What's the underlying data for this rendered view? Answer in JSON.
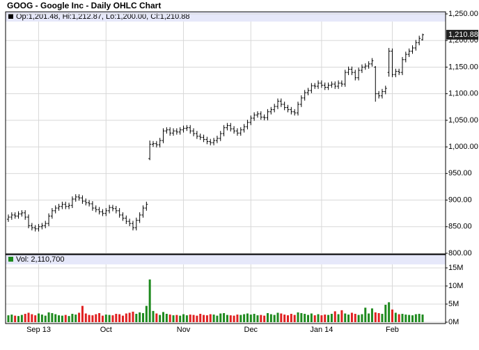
{
  "chart_data": {
    "type": "ohlc",
    "title": "GOOG - Google Inc - Daily OHLC Chart",
    "legend": "Op:1,201.48, Hi:1,212.87, Lo:1,200.00, Cl:1,210.88",
    "last_label": "1,210.88",
    "color": "#000000",
    "grid": true,
    "categories": [
      null,
      null,
      null,
      null,
      null,
      null,
      null,
      null,
      null,
      "Sep 13",
      null,
      null,
      null,
      null,
      null,
      null,
      null,
      null,
      null,
      null,
      null,
      null,
      null,
      null,
      null,
      null,
      null,
      null,
      null,
      "Oct",
      null,
      null,
      null,
      null,
      null,
      null,
      null,
      null,
      null,
      null,
      null,
      null,
      null,
      null,
      null,
      null,
      null,
      null,
      null,
      null,
      null,
      null,
      "Nov",
      null,
      null,
      null,
      null,
      null,
      null,
      null,
      null,
      null,
      null,
      null,
      null,
      null,
      null,
      null,
      null,
      null,
      null,
      null,
      "Dec",
      null,
      null,
      null,
      null,
      null,
      null,
      null,
      null,
      null,
      null,
      null,
      null,
      null,
      null,
      null,
      null,
      null,
      null,
      null,
      null,
      "Jan 14",
      null,
      null,
      null,
      null,
      null,
      null,
      null,
      null,
      null,
      null,
      null,
      null,
      null,
      null,
      null,
      null,
      null,
      null,
      null,
      null,
      "Feb",
      null,
      null,
      null,
      null,
      null,
      null,
      null,
      null,
      null
    ],
    "open": [
      864,
      868,
      872,
      870,
      874,
      876,
      868,
      852,
      848,
      846,
      850,
      852,
      856,
      870,
      880,
      885,
      888,
      892,
      888,
      890,
      902,
      906,
      904,
      898,
      895,
      893,
      885,
      882,
      878,
      875,
      880,
      886,
      884,
      880,
      872,
      866,
      860,
      856,
      848,
      862,
      872,
      885,
      978,
      1005,
      1006,
      1004,
      1012,
      1030,
      1032,
      1026,
      1030,
      1028,
      1032,
      1035,
      1036,
      1030,
      1025,
      1020,
      1018,
      1014,
      1010,
      1008,
      1012,
      1016,
      1025,
      1036,
      1040,
      1034,
      1030,
      1026,
      1032,
      1038,
      1046,
      1054,
      1060,
      1062,
      1056,
      1055,
      1066,
      1070,
      1076,
      1086,
      1080,
      1074,
      1070,
      1066,
      1064,
      1080,
      1092,
      1102,
      1106,
      1115,
      1114,
      1120,
      1116,
      1112,
      1116,
      1118,
      1114,
      1120,
      1118,
      1140,
      1146,
      1140,
      1130,
      1144,
      1150,
      1152,
      1156,
      1150,
      1100,
      1096,
      1104,
      1140,
      1180,
      1136,
      1142,
      1140,
      1164,
      1174,
      1180,
      1186,
      1196,
      1201.48
    ],
    "high": [
      873,
      877,
      877,
      879,
      881,
      881,
      873,
      857,
      853,
      855,
      857,
      861,
      875,
      885,
      890,
      893,
      897,
      897,
      895,
      907,
      911,
      911,
      909,
      903,
      900,
      898,
      890,
      887,
      883,
      885,
      891,
      891,
      889,
      885,
      877,
      871,
      865,
      861,
      867,
      877,
      890,
      897,
      1012,
      1011,
      1011,
      1017,
      1035,
      1037,
      1037,
      1035,
      1035,
      1037,
      1040,
      1041,
      1041,
      1035,
      1030,
      1025,
      1023,
      1019,
      1015,
      1017,
      1021,
      1030,
      1041,
      1045,
      1045,
      1039,
      1035,
      1037,
      1043,
      1051,
      1059,
      1065,
      1067,
      1067,
      1061,
      1071,
      1075,
      1081,
      1091,
      1091,
      1085,
      1079,
      1075,
      1071,
      1085,
      1097,
      1107,
      1111,
      1120,
      1120,
      1125,
      1125,
      1121,
      1121,
      1123,
      1123,
      1125,
      1125,
      1145,
      1151,
      1151,
      1145,
      1149,
      1155,
      1157,
      1161,
      1167,
      1152,
      1105,
      1109,
      1115,
      1186,
      1185,
      1147,
      1147,
      1169,
      1179,
      1185,
      1191,
      1201,
      1209,
      1212.87
    ],
    "low": [
      859,
      863,
      865,
      865,
      869,
      863,
      847,
      843,
      841,
      841,
      845,
      847,
      851,
      865,
      875,
      880,
      883,
      883,
      883,
      885,
      897,
      899,
      893,
      890,
      888,
      880,
      877,
      873,
      870,
      870,
      875,
      879,
      875,
      867,
      861,
      855,
      851,
      843,
      843,
      857,
      867,
      880,
      975,
      1000,
      999,
      999,
      1007,
      1025,
      1021,
      1021,
      1023,
      1023,
      1027,
      1030,
      1025,
      1020,
      1015,
      1013,
      1009,
      1005,
      1003,
      1003,
      1007,
      1011,
      1020,
      1031,
      1029,
      1025,
      1021,
      1021,
      1027,
      1033,
      1041,
      1049,
      1055,
      1051,
      1050,
      1050,
      1061,
      1065,
      1071,
      1075,
      1069,
      1065,
      1061,
      1059,
      1059,
      1075,
      1087,
      1097,
      1101,
      1109,
      1109,
      1111,
      1107,
      1107,
      1111,
      1109,
      1109,
      1113,
      1113,
      1135,
      1135,
      1125,
      1125,
      1139,
      1145,
      1147,
      1151,
      1085,
      1091,
      1091,
      1099,
      1132,
      1131,
      1131,
      1135,
      1135,
      1159,
      1169,
      1175,
      1181,
      1191,
      1200
    ],
    "close": [
      868,
      872,
      870,
      874,
      876,
      868,
      852,
      848,
      846,
      850,
      852,
      856,
      870,
      880,
      885,
      888,
      892,
      888,
      890,
      902,
      906,
      904,
      898,
      895,
      893,
      885,
      882,
      878,
      875,
      880,
      886,
      884,
      880,
      872,
      866,
      860,
      856,
      848,
      862,
      872,
      885,
      892,
      1005,
      1006,
      1004,
      1012,
      1030,
      1032,
      1026,
      1030,
      1028,
      1032,
      1035,
      1036,
      1030,
      1025,
      1020,
      1018,
      1014,
      1010,
      1008,
      1012,
      1016,
      1025,
      1036,
      1040,
      1034,
      1030,
      1026,
      1032,
      1038,
      1046,
      1054,
      1060,
      1062,
      1056,
      1055,
      1066,
      1070,
      1076,
      1086,
      1080,
      1074,
      1070,
      1066,
      1064,
      1080,
      1092,
      1102,
      1106,
      1115,
      1114,
      1120,
      1116,
      1112,
      1116,
      1118,
      1114,
      1120,
      1118,
      1140,
      1146,
      1140,
      1130,
      1144,
      1150,
      1152,
      1156,
      1162,
      1100,
      1096,
      1104,
      1110,
      1180,
      1136,
      1142,
      1140,
      1164,
      1174,
      1180,
      1186,
      1196,
      1204,
      1210.88
    ],
    "ylim": [
      800,
      1250
    ],
    "yticks": [
      {
        "value": 800,
        "label": "800.00"
      },
      {
        "value": 850,
        "label": "850.00"
      },
      {
        "value": 900,
        "label": "900.00"
      },
      {
        "value": 950,
        "label": "950.00"
      },
      {
        "value": 1000,
        "label": "1,000.00"
      },
      {
        "value": 1050,
        "label": "1,050.00"
      },
      {
        "value": 1100,
        "label": "1,100.00"
      },
      {
        "value": 1150,
        "label": "1,150.00"
      },
      {
        "value": 1200,
        "label": "1,200.00"
      },
      {
        "value": 1250,
        "label": "1,250.00"
      }
    ],
    "volume": {
      "label": "Vol: 2,110,700",
      "up_color": "#1e8a1e",
      "down_color": "#e02020",
      "values": [
        1900000,
        2100000,
        1800000,
        1700000,
        2000000,
        2300000,
        2600000,
        2200000,
        1900000,
        2400000,
        2100000,
        1800000,
        2700000,
        2500000,
        2200000,
        1900000,
        1800000,
        2000000,
        1700000,
        2300000,
        2100000,
        2600000,
        4500000,
        2400000,
        2000000,
        1900000,
        2200000,
        2500000,
        1800000,
        2100000,
        2000000,
        1900000,
        2300000,
        2200000,
        1800000,
        2400000,
        2600000,
        2900000,
        2300000,
        2700000,
        2500000,
        4500000,
        11800000,
        3100000,
        2400000,
        2000000,
        2800000,
        2300000,
        2100000,
        1900000,
        2000000,
        1800000,
        2200000,
        1900000,
        2100000,
        2000000,
        1800000,
        2300000,
        2000000,
        1900000,
        2200000,
        2100000,
        1800000,
        2400000,
        2500000,
        2000000,
        1900000,
        1800000,
        2100000,
        2000000,
        2200000,
        2400000,
        2100000,
        2300000,
        1900000,
        2000000,
        1800000,
        2500000,
        2200000,
        2000000,
        2600000,
        2400000,
        2100000,
        1900000,
        2300000,
        2000000,
        2700000,
        2500000,
        2300000,
        2000000,
        2400000,
        1900000,
        2200000,
        1900000,
        2100000,
        2000000,
        2300000,
        3000000,
        2200000,
        3300000,
        2400000,
        2100000,
        2600000,
        2300000,
        2000000,
        2200000,
        4000000,
        2400000,
        3800000,
        2700000,
        2500000,
        2300000,
        4800000,
        5500000,
        3500000,
        2600000,
        2200000,
        2300000,
        2100000,
        2000000,
        1900000,
        2200000,
        2300000,
        2110700
      ],
      "ylim": [
        0,
        15000000
      ],
      "yticks": [
        {
          "value": 0,
          "label": "0M"
        },
        {
          "value": 5000000,
          "label": "5M"
        },
        {
          "value": 10000000,
          "label": "10M"
        },
        {
          "value": 15000000,
          "label": "15M"
        }
      ]
    }
  }
}
